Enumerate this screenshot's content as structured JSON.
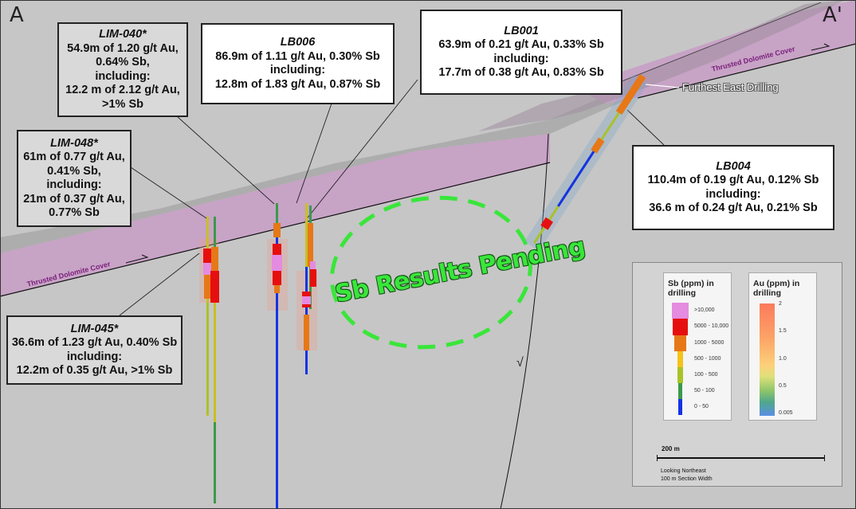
{
  "section": {
    "start_label": "A",
    "end_label": "A'",
    "thrust_label": "Thrusted Dolomite Cover",
    "pending_label": "Sb Results Pending",
    "furthest_east_label": "Furthest East Drilling",
    "fault_marker": "√",
    "colors": {
      "background": "#c6c6c6",
      "dolomite": "#c7a3c6",
      "overburden": "#a9a9a9",
      "pending": "#39e63a"
    }
  },
  "callouts": {
    "lim040": {
      "hole": "LIM-040*",
      "lines": [
        "54.9m of 1.20 g/t Au,",
        "0.64% Sb,",
        "including:",
        "12.2 m of 2.12 g/t Au,",
        ">1% Sb"
      ]
    },
    "lb006": {
      "hole": "LB006",
      "lines": [
        "86.9m of 1.11 g/t Au, 0.30% Sb",
        "including:",
        "12.8m of 1.83 g/t Au, 0.87% Sb"
      ]
    },
    "lb001": {
      "hole": "LB001",
      "lines": [
        "63.9m of 0.21 g/t Au, 0.33% Sb",
        "including:",
        "17.7m of 0.38 g/t Au, 0.83% Sb"
      ]
    },
    "lim048": {
      "hole": "LIM-048*",
      "lines": [
        "61m of  0.77 g/t Au,",
        "0.41% Sb,",
        "including:",
        "21m of 0.37 g/t Au,",
        "0.77% Sb"
      ]
    },
    "lb004": {
      "hole": "LB004",
      "lines": [
        "110.4m of 0.19 g/t Au, 0.12% Sb",
        "including:",
        "36.6 m of 0.24 g/t Au, 0.21% Sb"
      ]
    },
    "lim045": {
      "hole": "LIM-045*",
      "lines": [
        "36.6m of 1.23 g/t Au, 0.40% Sb",
        "including:",
        "12.2m of 0.35 g/t Au, >1% Sb"
      ]
    }
  },
  "legend": {
    "sb": {
      "title": "Sb (ppm) in drilling",
      "classes": [
        {
          "label": ">10,000",
          "color": "#e58be0"
        },
        {
          "label": "5000 - 10,000",
          "color": "#e60f0f"
        },
        {
          "label": "1000 - 5000",
          "color": "#e67817"
        },
        {
          "label": "500 - 1000",
          "color": "#f5c21b"
        },
        {
          "label": "100 - 500",
          "color": "#a8c22a"
        },
        {
          "label": "50 - 100",
          "color": "#3a9a4a"
        },
        {
          "label": "0 - 50",
          "color": "#1433e6"
        }
      ]
    },
    "au": {
      "title": "Au (ppm) in drilling",
      "ticks": [
        "2",
        "1.5",
        "1.0",
        "0.5",
        "0.005"
      ]
    },
    "scale_label": "200 m",
    "view_note": "Looking Northeast",
    "width_note": "100 m Section Width"
  }
}
